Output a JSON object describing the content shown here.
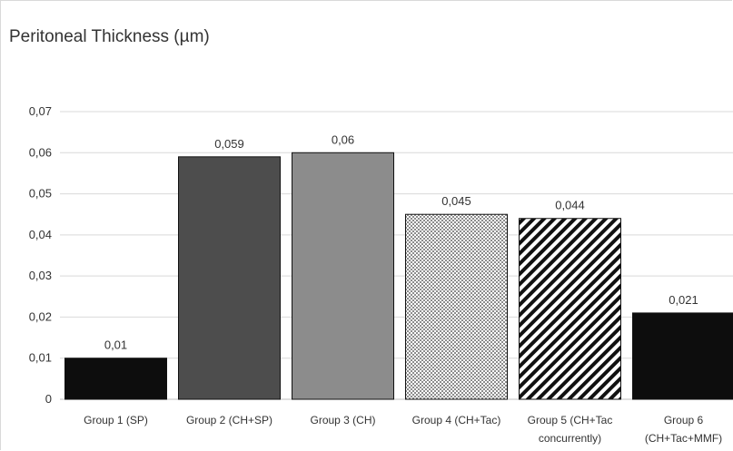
{
  "chart_data": {
    "type": "bar",
    "title": "Peritoneal Thickness (µm)",
    "xlabel": "",
    "ylabel": "",
    "ylim": [
      0,
      0.075
    ],
    "grid": true,
    "legend": "none",
    "categories": [
      [
        "Group 1 (SP)"
      ],
      [
        "Group 2 (CH+SP)"
      ],
      [
        "Group 3 (CH)"
      ],
      [
        "Group 4 (CH+Tac)"
      ],
      [
        "Group 5 (CH+Tac",
        "concurrently)"
      ],
      [
        "Group 6",
        "(CH+Tac+MMF)"
      ]
    ],
    "values": [
      0.01,
      0.059,
      0.06,
      0.045,
      0.044,
      0.021
    ],
    "data_labels": [
      "0,01",
      "0,059",
      "0,06",
      "0,045",
      "0,044",
      "0,021"
    ],
    "y_ticks": [
      {
        "value": 0,
        "label": "0"
      },
      {
        "value": 0.01,
        "label": "0,01"
      },
      {
        "value": 0.02,
        "label": "0,02"
      },
      {
        "value": 0.03,
        "label": "0,03"
      },
      {
        "value": 0.04,
        "label": "0,04"
      },
      {
        "value": 0.05,
        "label": "0,05"
      },
      {
        "value": 0.06,
        "label": "0,06"
      },
      {
        "value": 0.07,
        "label": "0,07"
      }
    ],
    "bar_fills": [
      "solid-black",
      "solid-dark-gray",
      "solid-gray",
      "checker-pattern",
      "diagonal-stripes",
      "solid-black"
    ],
    "colors": {
      "black": "#0d0d0d",
      "dark_gray": "#4d4d4d",
      "gray": "#8c8c8c",
      "grid": "#d9d9d9",
      "text": "#333333"
    }
  }
}
